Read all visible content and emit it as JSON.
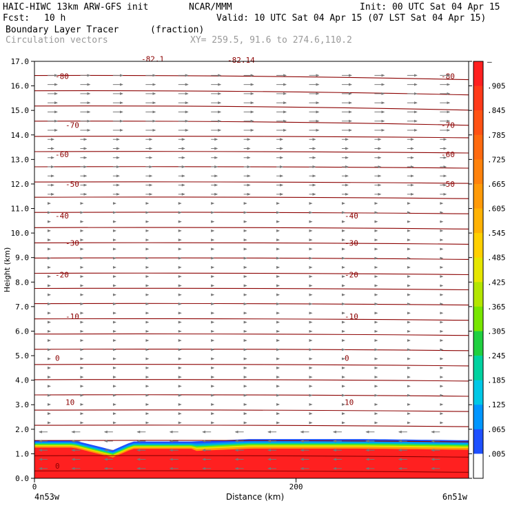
{
  "header": {
    "model": "HAIC-HIWC 13km ARW-GFS init",
    "org": "NCAR/MMM",
    "init": "Init: 00 UTC Sat 04 Apr 15",
    "fcst_label": "Fcst:",
    "fcst_value": "10 h",
    "valid": "Valid: 10 UTC Sat 04 Apr 15 (07 LST Sat 04 Apr 15)",
    "field": "Boundary Layer Tracer",
    "units": "(fraction)",
    "vectors": "Circulation vectors",
    "xy": "XY= 259.5, 91.6 to 274.6,110.2"
  },
  "chart_data": {
    "type": "heatmap",
    "xlabel": "Distance (km)",
    "ylabel": "Height (km)",
    "xlim": [
      0,
      332
    ],
    "ylim": [
      0,
      17
    ],
    "x_ticks": [
      {
        "v": 0,
        "label": "0"
      },
      {
        "v": 200,
        "label": "200"
      }
    ],
    "x_end_labels": {
      "left": "4n53w",
      "right": "6n51w"
    },
    "y_ticks": [
      "0.0",
      "1.0",
      "2.0",
      "3.0",
      "4.0",
      "5.0",
      "6.0",
      "7.0",
      "8.0",
      "9.0",
      "10.0",
      "11.0",
      "12.0",
      "13.0",
      "14.0",
      "15.0",
      "16.0",
      "17.0"
    ],
    "colorbar": {
      "labels": [
        "–",
        ".905",
        ".845",
        ".785",
        ".725",
        ".665",
        ".605",
        ".545",
        ".485",
        ".425",
        ".365",
        ".305",
        ".245",
        ".185",
        ".125",
        ".065",
        ".005"
      ],
      "colors": [
        "#ff2020",
        "#ff3a1a",
        "#ff5214",
        "#ff6a10",
        "#ff820c",
        "#ff9a08",
        "#ffb204",
        "#ffd000",
        "#e6e600",
        "#b4e600",
        "#78e600",
        "#20d040",
        "#00d2a0",
        "#00c8e6",
        "#0096ff",
        "#1e50ff",
        "#ffffff"
      ]
    },
    "temperature_contours": [
      {
        "label": "-82.1",
        "y": 17.1
      },
      {
        "label": "-82.14",
        "y": 17.05
      },
      {
        "label": "-80",
        "y": 16.4
      },
      {
        "label": "-70",
        "y": 14.4
      },
      {
        "label": "-60",
        "y": 13.2
      },
      {
        "label": "-50",
        "y": 12.0
      },
      {
        "label": "-40",
        "y": 10.7
      },
      {
        "label": "-30",
        "y": 9.6
      },
      {
        "label": "-20",
        "y": 8.3
      },
      {
        "label": "-10",
        "y": 6.6
      },
      {
        "label": "0",
        "y": 4.9
      },
      {
        "label": "10",
        "y": 3.1
      },
      {
        "label": "0",
        "y": 0.5
      }
    ],
    "tracer_top_km": [
      {
        "x": 0,
        "top": 1.55
      },
      {
        "x": 30,
        "top": 1.55
      },
      {
        "x": 60,
        "top": 1.15
      },
      {
        "x": 75,
        "top": 1.5
      },
      {
        "x": 120,
        "top": 1.5
      },
      {
        "x": 165,
        "top": 1.6
      },
      {
        "x": 250,
        "top": 1.6
      },
      {
        "x": 332,
        "top": 1.55
      }
    ]
  }
}
